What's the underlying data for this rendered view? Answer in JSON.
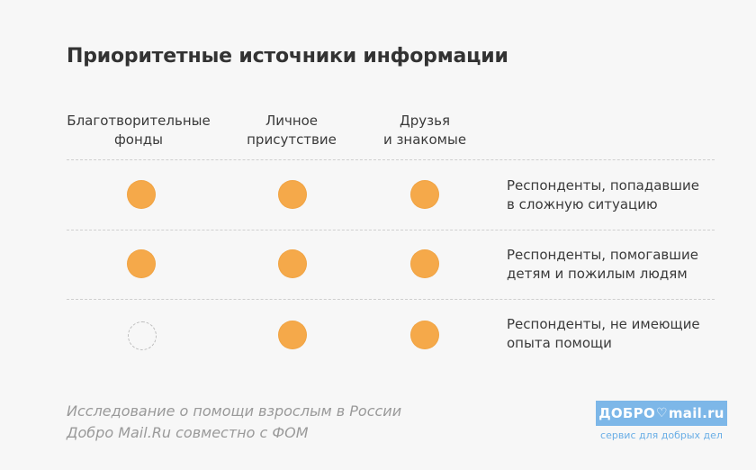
{
  "title": "Приоритетные источники информации",
  "columns": [
    {
      "line1": "Благотворительные",
      "line2": "фонды"
    },
    {
      "line1": "Личное",
      "line2": "присутствие"
    },
    {
      "line1": "Друзья",
      "line2": "и знакомые"
    }
  ],
  "rows": [
    {
      "line1": "Респонденты, попадавшие",
      "line2": "в сложную ситуацию",
      "marks": [
        true,
        true,
        true
      ]
    },
    {
      "line1": "Респонденты, помогавшие",
      "line2": "детям и пожилым людям",
      "marks": [
        true,
        true,
        true
      ]
    },
    {
      "line1": "Респонденты, не имеющие",
      "line2": "опыта помощи",
      "marks": [
        false,
        true,
        true
      ]
    }
  ],
  "footer": {
    "line1": "Исследование о помощи взрослым в России",
    "line2": "Добро Mail.Ru совместно с ФОМ"
  },
  "logo": {
    "text_left": "ДОБРО",
    "text_right": "mail.ru",
    "tagline": "сервис для добрых дел"
  },
  "colors": {
    "dot_filled": "#f5a94a",
    "logo_bg": "#7db7e8"
  }
}
